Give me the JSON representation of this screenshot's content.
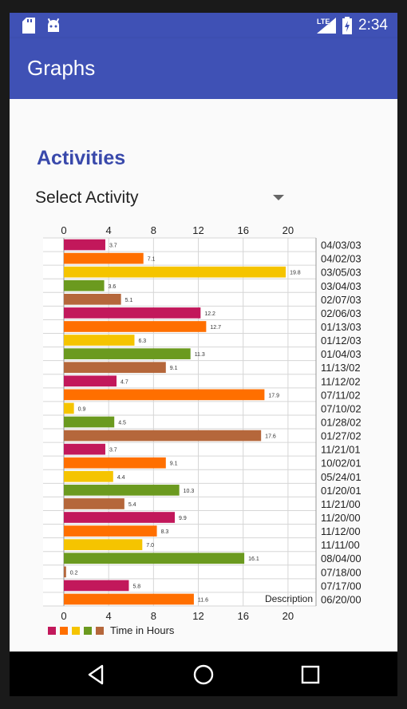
{
  "status_bar": {
    "network": "LTE",
    "time": "2:34"
  },
  "app_bar": {
    "title": "Graphs"
  },
  "section": {
    "title": "Activities"
  },
  "activity_select": {
    "value": "Select Activity"
  },
  "chart_data": {
    "type": "bar",
    "orientation": "horizontal",
    "categories": [
      "04/03/03",
      "04/02/03",
      "03/05/03",
      "03/04/03",
      "02/07/03",
      "02/06/03",
      "01/13/03",
      "01/12/03",
      "01/04/03",
      "11/13/02",
      "11/12/02",
      "07/11/02",
      "07/10/02",
      "01/28/02",
      "01/27/02",
      "11/21/01",
      "10/02/01",
      "05/24/01",
      "01/20/01",
      "11/21/00",
      "11/20/00",
      "11/12/00",
      "11/11/00",
      "08/04/00",
      "07/18/00",
      "07/17/00",
      "06/20/00"
    ],
    "values": [
      3.7,
      7.1,
      19.8,
      3.6,
      5.1,
      12.2,
      12.7,
      6.3,
      11.3,
      9.1,
      4.7,
      17.9,
      0.9,
      4.5,
      17.6,
      3.7,
      9.1,
      4.4,
      10.3,
      5.4,
      9.9,
      8.3,
      7.0,
      16.1,
      0.2,
      5.8,
      11.6
    ],
    "value_labels": [
      "3.7",
      "7.1",
      "19.8",
      "3.6",
      "5.1",
      "12.2",
      "12.7",
      "6.3",
      "11.3",
      "9.1",
      "4.7",
      "17.9",
      "0.9",
      "4.5",
      "17.6",
      "3.7",
      "9.1",
      "4.4",
      "10.3",
      "5.4",
      "9.9",
      "8.3",
      "7.0",
      "16.1",
      "0.2",
      "5.8",
      "11.6"
    ],
    "colors": [
      "#c2185b",
      "#ff6f00",
      "#f5c400",
      "#6b9a1f",
      "#b5673b"
    ],
    "xticks": [
      "0",
      "4",
      "8",
      "12",
      "16",
      "20"
    ],
    "xlim": [
      0,
      22.5
    ],
    "legend": {
      "label": "Time in Hours",
      "placement": "bottom-left"
    },
    "description": "Description",
    "grid": true
  }
}
